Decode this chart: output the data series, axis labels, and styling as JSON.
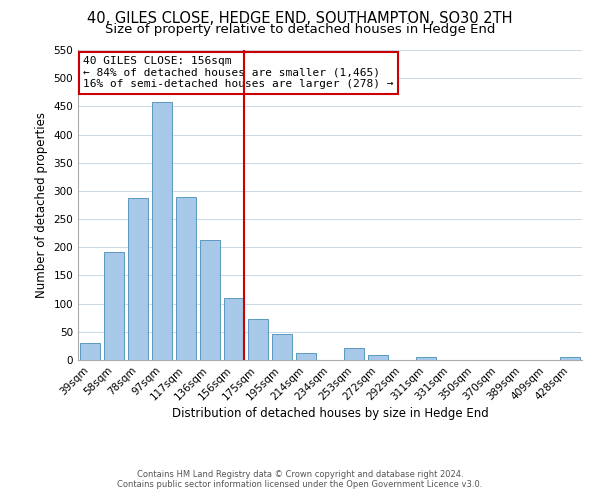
{
  "title": "40, GILES CLOSE, HEDGE END, SOUTHAMPTON, SO30 2TH",
  "subtitle": "Size of property relative to detached houses in Hedge End",
  "xlabel": "Distribution of detached houses by size in Hedge End",
  "ylabel": "Number of detached properties",
  "bar_labels": [
    "39sqm",
    "58sqm",
    "78sqm",
    "97sqm",
    "117sqm",
    "136sqm",
    "156sqm",
    "175sqm",
    "195sqm",
    "214sqm",
    "234sqm",
    "253sqm",
    "272sqm",
    "292sqm",
    "311sqm",
    "331sqm",
    "350sqm",
    "370sqm",
    "389sqm",
    "409sqm",
    "428sqm"
  ],
  "bar_values": [
    30,
    192,
    287,
    458,
    290,
    213,
    110,
    73,
    46,
    13,
    0,
    22,
    8,
    0,
    5,
    0,
    0,
    0,
    0,
    0,
    5
  ],
  "bar_color": "#a8c8e8",
  "bar_edge_color": "#5a9abf",
  "vline_index": 6,
  "vline_color": "#cc0000",
  "annotation_title": "40 GILES CLOSE: 156sqm",
  "annotation_line1": "← 84% of detached houses are smaller (1,465)",
  "annotation_line2": "16% of semi-detached houses are larger (278) →",
  "annotation_box_color": "#ffffff",
  "annotation_box_edgecolor": "#cc0000",
  "ylim": [
    0,
    550
  ],
  "yticks": [
    0,
    50,
    100,
    150,
    200,
    250,
    300,
    350,
    400,
    450,
    500,
    550
  ],
  "title_fontsize": 10.5,
  "subtitle_fontsize": 9.5,
  "xlabel_fontsize": 8.5,
  "ylabel_fontsize": 8.5,
  "tick_fontsize": 7.5,
  "footer_line1": "Contains HM Land Registry data © Crown copyright and database right 2024.",
  "footer_line2": "Contains public sector information licensed under the Open Government Licence v3.0.",
  "background_color": "#ffffff",
  "grid_color": "#c8d8e8"
}
